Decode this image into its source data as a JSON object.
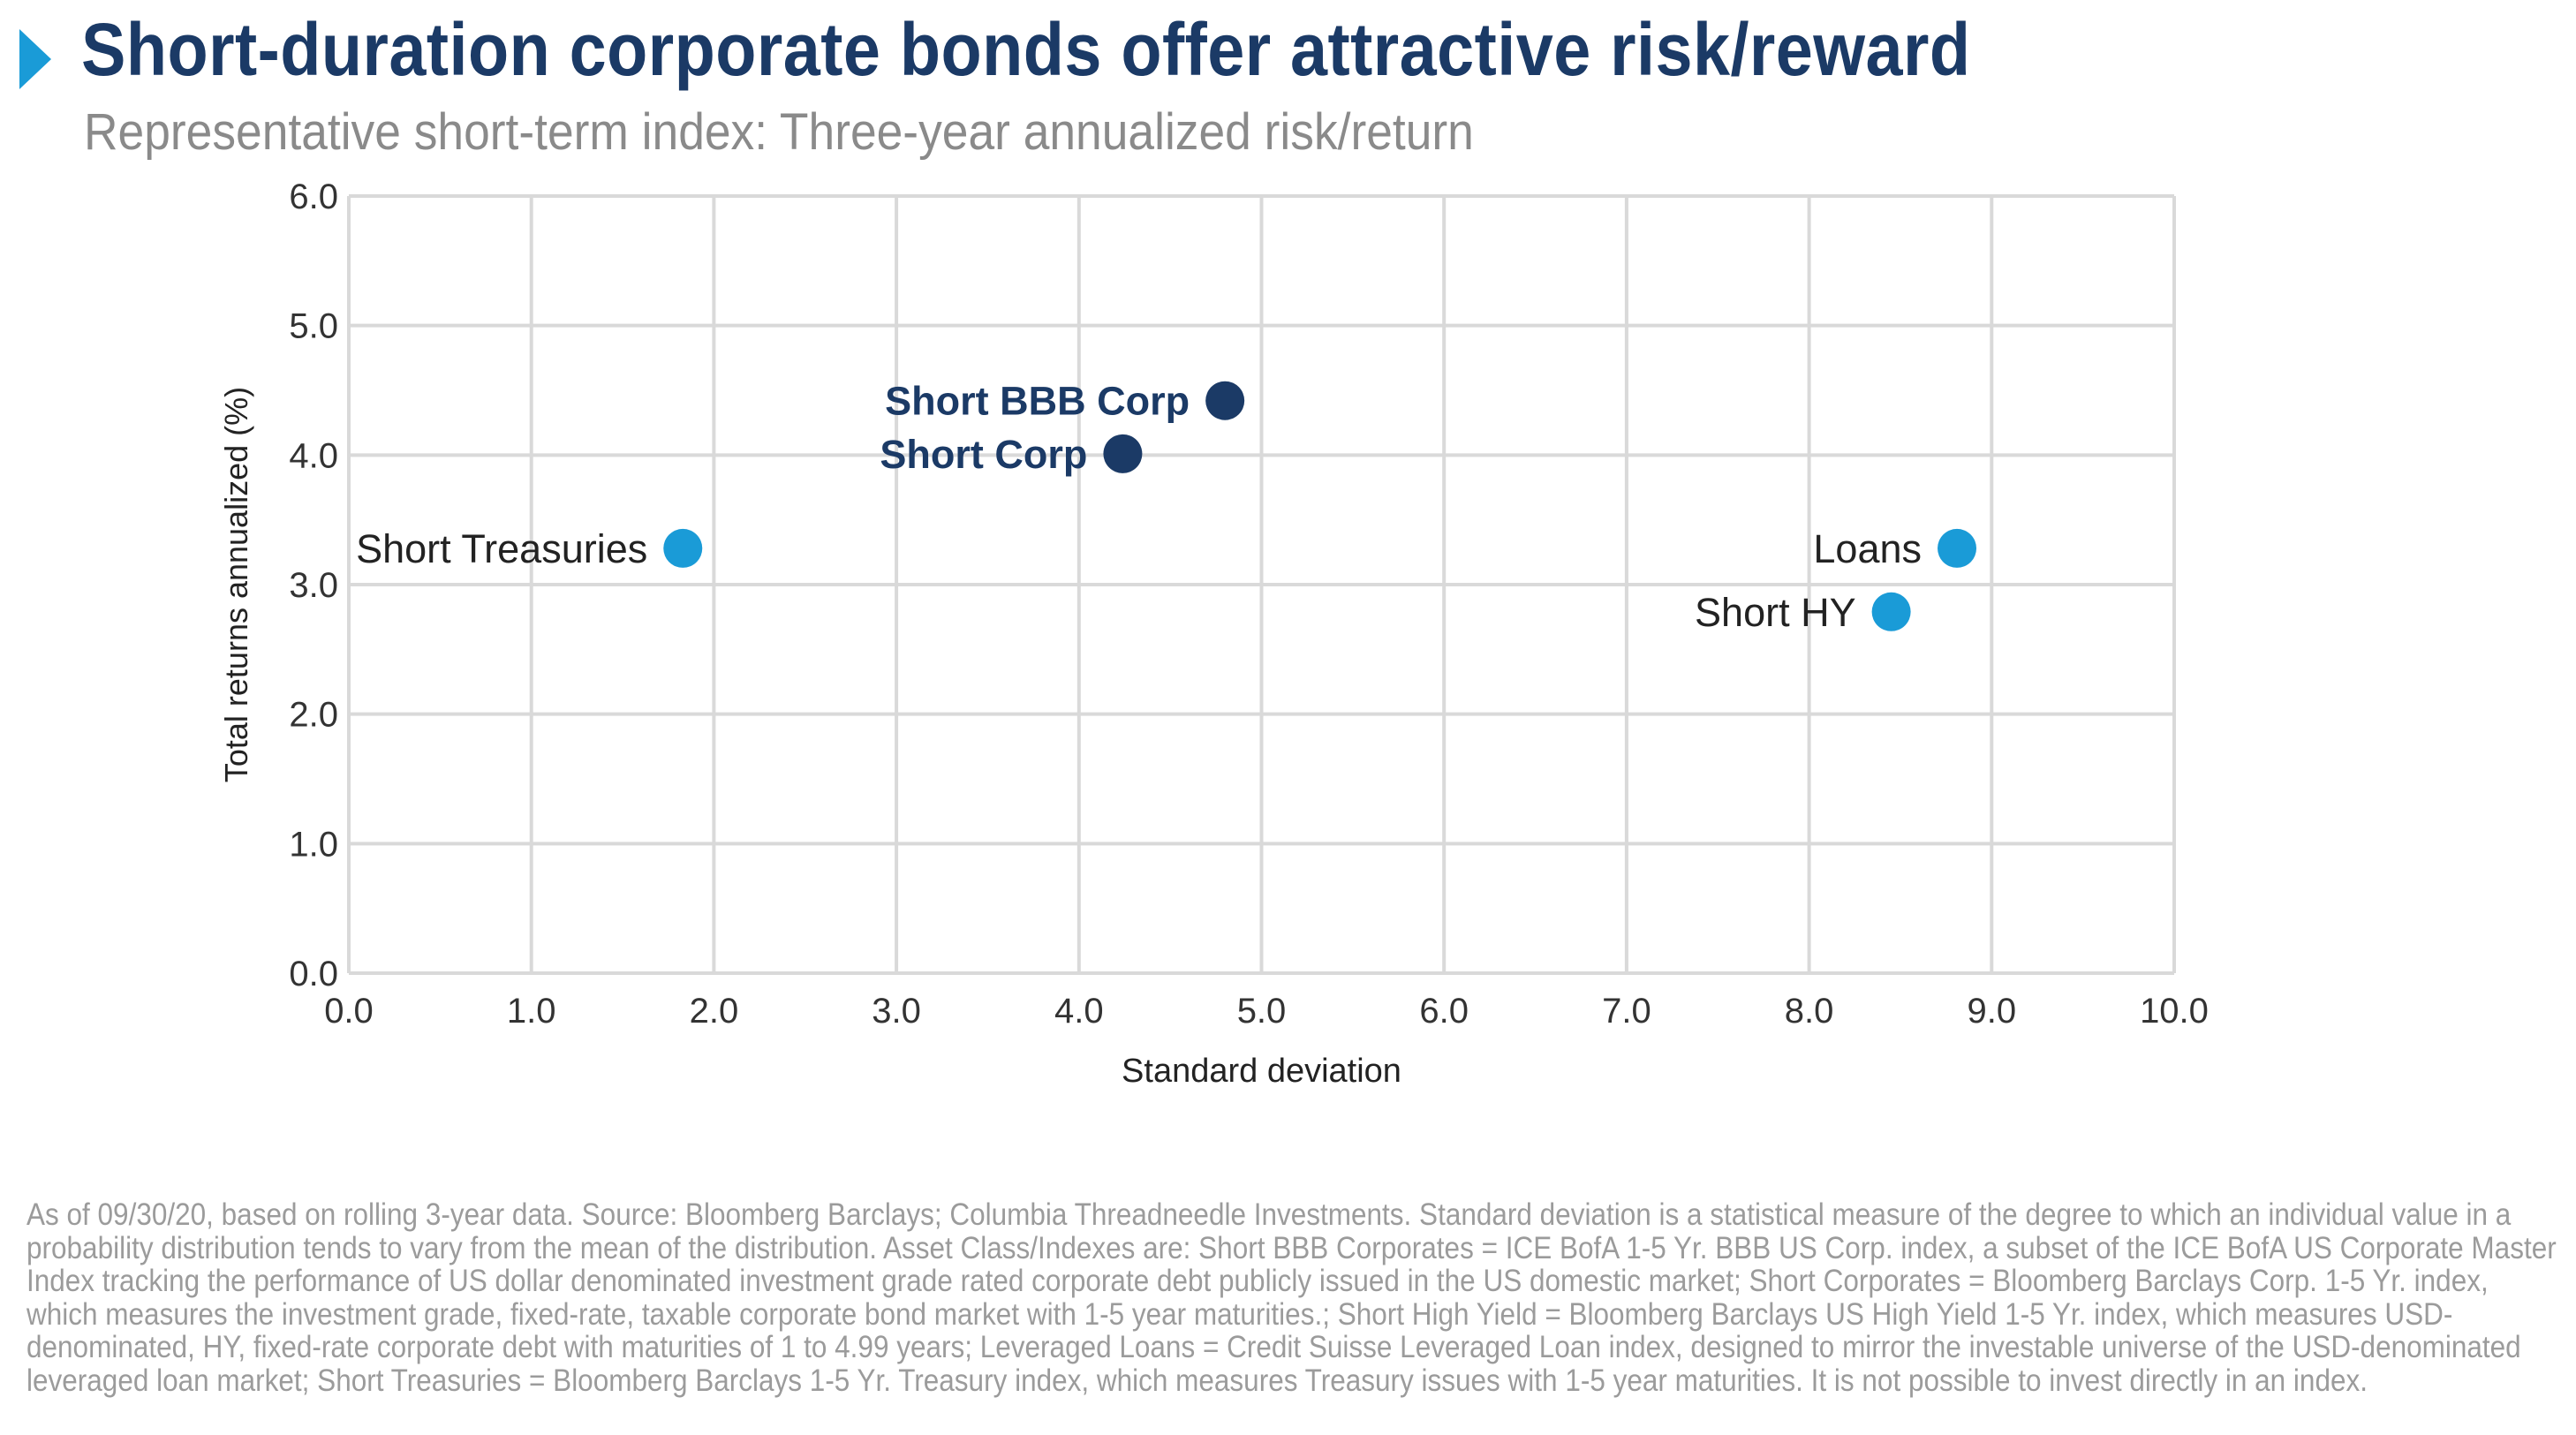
{
  "header": {
    "title": "Short-duration corporate bonds offer attractive risk/reward",
    "subtitle": "Representative short-term index: Three-year annualized risk/return"
  },
  "colors": {
    "title": "#1b3a66",
    "accent": "#1a9bd7",
    "dark_point": "#1b3a66",
    "light_point": "#1a9bd7",
    "grid": "#d9d9d9",
    "footnote": "#9b9b9b"
  },
  "chart_data": {
    "type": "scatter",
    "title": "",
    "xlabel": "Standard deviation",
    "ylabel": "Total returns annualized (%)",
    "xlim": [
      0,
      10
    ],
    "ylim": [
      0,
      6
    ],
    "xticks": [
      "0.0",
      "1.0",
      "2.0",
      "3.0",
      "4.0",
      "5.0",
      "6.0",
      "7.0",
      "8.0",
      "9.0",
      "10.0"
    ],
    "yticks": [
      "0.0",
      "1.0",
      "2.0",
      "3.0",
      "4.0",
      "5.0",
      "6.0"
    ],
    "grid": true,
    "points": [
      {
        "label": "Short BBB Corp",
        "x": 4.8,
        "y": 4.42,
        "color": "#1b3a66",
        "bold": true
      },
      {
        "label": "Short Corp",
        "x": 4.24,
        "y": 4.01,
        "color": "#1b3a66",
        "bold": true
      },
      {
        "label": "Short Treasuries",
        "x": 1.83,
        "y": 3.28,
        "color": "#1a9bd7",
        "bold": false
      },
      {
        "label": "Loans",
        "x": 8.81,
        "y": 3.28,
        "color": "#1a9bd7",
        "bold": false
      },
      {
        "label": "Short HY",
        "x": 8.45,
        "y": 2.79,
        "color": "#1a9bd7",
        "bold": false
      }
    ]
  },
  "footnote": "As of 09/30/20, based on rolling 3-year data. Source: Bloomberg Barclays; Columbia Threadneedle Investments. Standard deviation is a statistical measure of the degree to which an individual value in a probability distribution tends to vary from the mean of the distribution. Asset Class/Indexes are: Short BBB Corporates = ICE BofA 1-5 Yr. BBB US Corp. index, a subset of the ICE BofA US Corporate Master Index tracking the performance of US dollar denominated investment grade rated corporate debt publicly issued in the US domestic market; Short Corporates = Bloomberg Barclays Corp. 1-5 Yr. index, which measures the investment grade, fixed-rate, taxable corporate bond market with 1-5 year maturities.; Short High Yield = Bloomberg Barclays US High Yield 1-5 Yr. index, which measures USD-denominated, HY, fixed-rate corporate debt with maturities of 1 to 4.99 years; Leveraged Loans = Credit Suisse Leveraged Loan index, designed to mirror the investable universe of the USD-denominated leveraged loan market; Short Treasuries = Bloomberg Barclays 1-5 Yr. Treasury index, which measures Treasury issues with 1-5 year maturities. It is not possible to invest directly in an index."
}
